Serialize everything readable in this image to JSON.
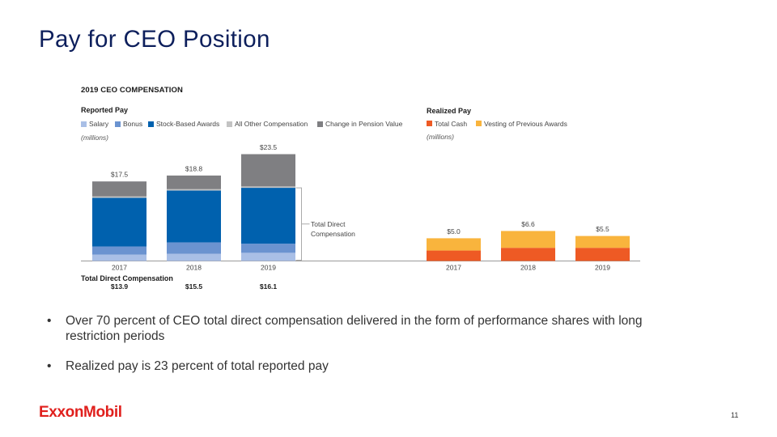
{
  "slide": {
    "title": "Pay for CEO Position",
    "page_number": "11",
    "logo_text": "ExxonMobil",
    "brand_color": "#e0201d",
    "title_color": "#0d1f5c"
  },
  "figure": {
    "title": "2019 CEO COMPENSATION"
  },
  "bullets": [
    {
      "icon": "bullet-dot",
      "glyph": "•",
      "text": "Over 70 percent of CEO total direct compensation delivered in the form of performance shares with long restriction periods"
    },
    {
      "icon": "bullet-dot",
      "glyph": "•",
      "text": "Realized pay is 23 percent of total reported pay"
    }
  ],
  "chart_data": [
    {
      "type": "bar",
      "stacked": true,
      "title": "Reported Pay",
      "unit_label": "(millions)",
      "xlabel": "",
      "ylabel": "",
      "grid": false,
      "legend": "top-left",
      "ylim": [
        0,
        23.5
      ],
      "categories": [
        "2017",
        "2018",
        "2019"
      ],
      "series": [
        {
          "name": "Salary",
          "color": "#a9bfe6",
          "values": [
            1.4,
            1.6,
            1.8
          ]
        },
        {
          "name": "Bonus",
          "color": "#6b93d0",
          "values": [
            1.8,
            2.5,
            2.0
          ]
        },
        {
          "name": "Stock-Based Awards",
          "color": "#0061ae",
          "values": [
            10.7,
            11.4,
            12.3
          ]
        },
        {
          "name": "All Other Compensation",
          "color": "#c3c3c3",
          "values": [
            0.3,
            0.3,
            0.3
          ]
        },
        {
          "name": "Change in Pension Value",
          "color": "#7f7f82",
          "values": [
            3.3,
            3.0,
            7.1
          ]
        }
      ],
      "totals": [
        17.5,
        18.8,
        23.5
      ],
      "total_labels": [
        "$17.5",
        "$18.8",
        "$23.5"
      ],
      "footer": {
        "label": "Total Direct Compensation",
        "values": [
          13.9,
          15.5,
          16.1
        ],
        "value_labels": [
          "$13.9",
          "$15.5",
          "$16.1"
        ]
      },
      "annotation": {
        "text_lines": [
          "Total Direct",
          "Compensation"
        ],
        "category": "2019",
        "spans_series": [
          "Salary",
          "Bonus",
          "Stock-Based Awards"
        ]
      }
    },
    {
      "type": "bar",
      "stacked": true,
      "title": "Realized Pay",
      "unit_label": "(millions)",
      "xlabel": "",
      "ylabel": "",
      "grid": false,
      "legend": "top-left",
      "ylim": [
        0,
        23.5
      ],
      "categories": [
        "2017",
        "2018",
        "2019"
      ],
      "series": [
        {
          "name": "Total Cash",
          "color": "#ee5a24",
          "values": [
            2.3,
            2.9,
            2.9
          ]
        },
        {
          "name": "Vesting of Previous Awards",
          "color": "#f9b43d",
          "values": [
            2.7,
            3.7,
            2.6
          ]
        }
      ],
      "totals": [
        5.0,
        6.6,
        5.5
      ],
      "total_labels": [
        "$5.0",
        "$6.6",
        "$5.5"
      ]
    }
  ]
}
